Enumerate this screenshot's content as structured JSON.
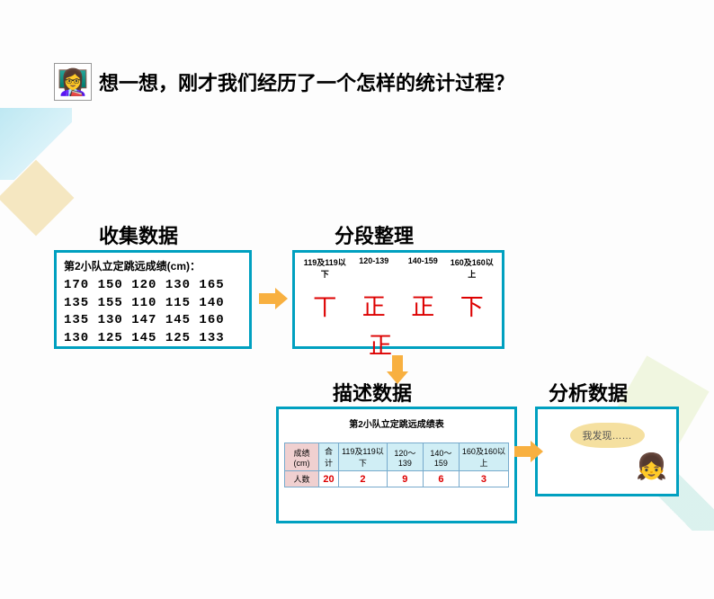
{
  "title": "想一想，刚才我们经历了一个怎样的统计过程？",
  "labels": {
    "collect": "收集数据",
    "segment": "分段整理",
    "describe": "描述数据",
    "analyze": "分析数据"
  },
  "raw": {
    "title": "第2小队立定跳远成绩(cm)：",
    "rows": [
      "170  150  120  130  165",
      "135  155  110  115  140",
      "135  130  147  145  160",
      "130  125  145  125  133"
    ]
  },
  "segment": {
    "headers": [
      "119及119以下",
      "120-139",
      "140-159",
      "160及160以上"
    ],
    "tallies_row1": [
      "丅",
      "正",
      "正",
      "下"
    ],
    "tallies_row2": "正"
  },
  "table": {
    "title": "第2小队立定跳远成绩表",
    "row_headers": [
      "成绩(cm)",
      "人数"
    ],
    "cols": [
      "合计",
      "119及119以下",
      "120～139",
      "140～159",
      "160及160以上"
    ],
    "counts": [
      "20",
      "2",
      "9",
      "6",
      "3"
    ]
  },
  "discovery": "我发现……",
  "colors": {
    "box_border": "#00a0c0",
    "arrow": "#f8b040",
    "tally": "#d00",
    "speech_bg": "#f5e0a0"
  }
}
